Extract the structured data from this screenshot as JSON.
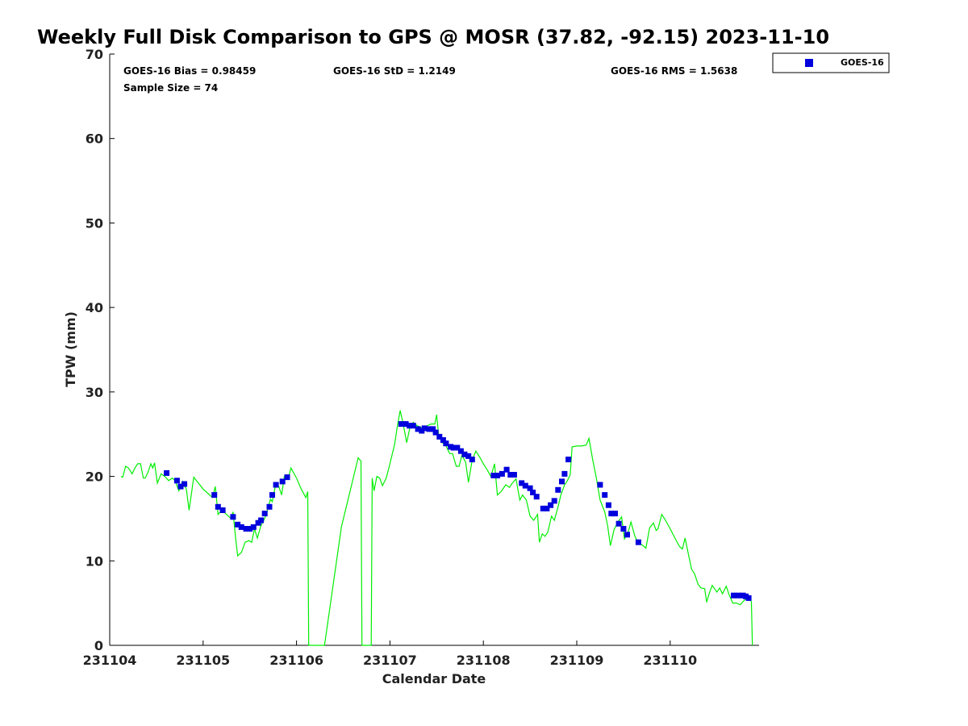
{
  "chart_data": {
    "type": "scatter",
    "title": "Weekly Full Disk Comparison to GPS @ MOSR (37.82, -92.15) 2023-11-10",
    "xlabel": "Calendar Date",
    "ylabel": "TPW (mm)",
    "xlim": [
      231104,
      231111
    ],
    "ylim": [
      0,
      70
    ],
    "x_tick_labels": [
      "231104",
      "231105",
      "231106",
      "231107",
      "231108",
      "231109",
      "231110"
    ],
    "y_tick_labels": [
      "0",
      "10",
      "20",
      "30",
      "40",
      "50",
      "60",
      "70"
    ],
    "grid": false,
    "legend_position": "top-right",
    "stats": {
      "bias": "GOES-16 Bias = 0.98459",
      "std": "GOES-16 StD = 1.2149",
      "rms": "GOES-16 RMS = 1.5638",
      "sample": "Sample Size = 74"
    },
    "series": [
      {
        "name": "GOES-16",
        "kind": "scatter",
        "color": "#0000dd",
        "points": [
          [
            231104.61,
            20.4
          ],
          [
            231104.72,
            19.5
          ],
          [
            231104.76,
            18.8
          ],
          [
            231104.8,
            19.1
          ],
          [
            231105.12,
            17.8
          ],
          [
            231105.16,
            16.4
          ],
          [
            231105.21,
            16.0
          ],
          [
            231105.32,
            15.2
          ],
          [
            231105.37,
            14.3
          ],
          [
            231105.41,
            14.0
          ],
          [
            231105.46,
            13.8
          ],
          [
            231105.5,
            13.8
          ],
          [
            231105.54,
            14.0
          ],
          [
            231105.59,
            14.5
          ],
          [
            231105.62,
            14.8
          ],
          [
            231105.66,
            15.6
          ],
          [
            231105.71,
            16.4
          ],
          [
            231105.74,
            17.8
          ],
          [
            231105.78,
            19.0
          ],
          [
            231105.85,
            19.4
          ],
          [
            231105.9,
            19.9
          ],
          [
            231107.12,
            26.2
          ],
          [
            231107.17,
            26.2
          ],
          [
            231107.21,
            26.0
          ],
          [
            231107.25,
            26.0
          ],
          [
            231107.3,
            25.6
          ],
          [
            231107.34,
            25.4
          ],
          [
            231107.37,
            25.7
          ],
          [
            231107.42,
            25.6
          ],
          [
            231107.46,
            25.6
          ],
          [
            231107.49,
            25.2
          ],
          [
            231107.53,
            24.7
          ],
          [
            231107.57,
            24.3
          ],
          [
            231107.6,
            23.9
          ],
          [
            231107.65,
            23.5
          ],
          [
            231107.68,
            23.4
          ],
          [
            231107.72,
            23.4
          ],
          [
            231107.76,
            23.0
          ],
          [
            231107.8,
            22.6
          ],
          [
            231107.84,
            22.4
          ],
          [
            231107.88,
            22.0
          ],
          [
            231108.11,
            20.1
          ],
          [
            231108.15,
            20.1
          ],
          [
            231108.2,
            20.3
          ],
          [
            231108.25,
            20.8
          ],
          [
            231108.29,
            20.2
          ],
          [
            231108.33,
            20.2
          ],
          [
            231108.41,
            19.2
          ],
          [
            231108.45,
            18.9
          ],
          [
            231108.5,
            18.6
          ],
          [
            231108.53,
            18.1
          ],
          [
            231108.57,
            17.6
          ],
          [
            231108.64,
            16.2
          ],
          [
            231108.68,
            16.2
          ],
          [
            231108.72,
            16.6
          ],
          [
            231108.76,
            17.1
          ],
          [
            231108.8,
            18.4
          ],
          [
            231108.84,
            19.4
          ],
          [
            231108.87,
            20.3
          ],
          [
            231108.91,
            22.0
          ],
          [
            231109.25,
            19.0
          ],
          [
            231109.3,
            17.8
          ],
          [
            231109.34,
            16.6
          ],
          [
            231109.37,
            15.6
          ],
          [
            231109.41,
            15.6
          ],
          [
            231109.45,
            14.4
          ],
          [
            231109.5,
            13.8
          ],
          [
            231109.54,
            13.1
          ],
          [
            231109.66,
            12.2
          ],
          [
            231110.68,
            5.9
          ],
          [
            231110.73,
            5.9
          ],
          [
            231110.78,
            5.9
          ],
          [
            231110.81,
            5.8
          ],
          [
            231110.84,
            5.6
          ]
        ]
      },
      {
        "kind": "line",
        "color": "#00ee00",
        "points": [
          [
            231104.12,
            20.0
          ],
          [
            231104.14,
            19.9
          ],
          [
            231104.17,
            21.2
          ],
          [
            231104.2,
            21.0
          ],
          [
            231104.24,
            20.3
          ],
          [
            231104.27,
            21.0
          ],
          [
            231104.3,
            21.5
          ],
          [
            231104.33,
            21.5
          ],
          [
            231104.36,
            19.8
          ],
          [
            231104.38,
            19.8
          ],
          [
            231104.41,
            20.5
          ],
          [
            231104.44,
            21.5
          ],
          [
            231104.46,
            21.0
          ],
          [
            231104.48,
            21.6
          ],
          [
            231104.51,
            19.2
          ],
          [
            231104.55,
            20.3
          ],
          [
            231104.59,
            20.0
          ],
          [
            231104.63,
            19.5
          ],
          [
            231104.67,
            19.8
          ],
          [
            231104.7,
            19.5
          ],
          [
            231104.74,
            18.3
          ],
          [
            231104.78,
            19.4
          ],
          [
            231104.82,
            18.5
          ],
          [
            231104.85,
            16.0
          ],
          [
            231104.9,
            19.9
          ],
          [
            231104.95,
            19.2
          ],
          [
            231105.0,
            18.5
          ],
          [
            231105.05,
            18.0
          ],
          [
            231105.1,
            17.5
          ],
          [
            231105.13,
            18.8
          ],
          [
            231105.16,
            15.5
          ],
          [
            231105.2,
            16.0
          ],
          [
            231105.25,
            15.5
          ],
          [
            231105.3,
            15.0
          ],
          [
            231105.32,
            15.8
          ],
          [
            231105.35,
            12.5
          ],
          [
            231105.37,
            10.6
          ],
          [
            231105.41,
            11.0
          ],
          [
            231105.45,
            12.2
          ],
          [
            231105.49,
            12.4
          ],
          [
            231105.52,
            12.2
          ],
          [
            231105.55,
            13.8
          ],
          [
            231105.58,
            12.7
          ],
          [
            231105.62,
            14.2
          ],
          [
            231105.65,
            14.8
          ],
          [
            231105.68,
            15.6
          ],
          [
            231105.72,
            17.3
          ],
          [
            231105.74,
            17.0
          ],
          [
            231105.78,
            19.2
          ],
          [
            231105.81,
            18.8
          ],
          [
            231105.84,
            17.8
          ],
          [
            231105.87,
            20.0
          ],
          [
            231105.91,
            19.7
          ],
          [
            231105.94,
            21.0
          ],
          [
            231106.0,
            19.8
          ],
          [
            231106.05,
            18.5
          ],
          [
            231106.1,
            17.5
          ],
          [
            231106.12,
            18.2
          ],
          [
            231106.13,
            0.0
          ],
          [
            231106.3,
            0.0
          ],
          [
            231106.48,
            14.0
          ],
          [
            231106.66,
            22.2
          ],
          [
            231106.69,
            21.8
          ],
          [
            231106.7,
            0.0
          ],
          [
            231106.8,
            0.0
          ],
          [
            231106.81,
            19.8
          ],
          [
            231106.83,
            18.3
          ],
          [
            231106.86,
            20.0
          ],
          [
            231106.89,
            19.8
          ],
          [
            231106.92,
            18.9
          ],
          [
            231106.96,
            19.8
          ],
          [
            231107.0,
            21.5
          ],
          [
            231107.05,
            23.8
          ],
          [
            231107.08,
            26.0
          ],
          [
            231107.11,
            27.8
          ],
          [
            231107.14,
            26.3
          ],
          [
            231107.18,
            24.0
          ],
          [
            231107.21,
            25.6
          ],
          [
            231107.25,
            26.4
          ],
          [
            231107.29,
            26.0
          ],
          [
            231107.33,
            25.8
          ],
          [
            231107.36,
            25.5
          ],
          [
            231107.4,
            26.0
          ],
          [
            231107.44,
            26.2
          ],
          [
            231107.48,
            26.2
          ],
          [
            231107.5,
            27.3
          ],
          [
            231107.52,
            25.0
          ],
          [
            231107.56,
            24.0
          ],
          [
            231107.6,
            23.6
          ],
          [
            231107.64,
            22.7
          ],
          [
            231107.67,
            22.7
          ],
          [
            231107.71,
            21.2
          ],
          [
            231107.74,
            21.2
          ],
          [
            231107.77,
            22.5
          ],
          [
            231107.81,
            21.7
          ],
          [
            231107.84,
            19.3
          ],
          [
            231107.88,
            21.9
          ],
          [
            231107.92,
            23.0
          ],
          [
            231107.96,
            22.3
          ],
          [
            231108.0,
            21.5
          ],
          [
            231108.04,
            20.8
          ],
          [
            231108.08,
            20.0
          ],
          [
            231108.12,
            21.5
          ],
          [
            231108.15,
            17.8
          ],
          [
            231108.19,
            18.2
          ],
          [
            231108.24,
            19.0
          ],
          [
            231108.28,
            18.7
          ],
          [
            231108.31,
            19.2
          ],
          [
            231108.35,
            19.7
          ],
          [
            231108.39,
            17.2
          ],
          [
            231108.42,
            17.8
          ],
          [
            231108.46,
            17.2
          ],
          [
            231108.5,
            15.3
          ],
          [
            231108.54,
            14.8
          ],
          [
            231108.58,
            15.5
          ],
          [
            231108.6,
            12.2
          ],
          [
            231108.63,
            13.2
          ],
          [
            231108.66,
            12.9
          ],
          [
            231108.69,
            13.4
          ],
          [
            231108.73,
            15.3
          ],
          [
            231108.76,
            14.8
          ],
          [
            231108.8,
            16.4
          ],
          [
            231108.83,
            17.8
          ],
          [
            231108.87,
            19.0
          ],
          [
            231108.9,
            19.5
          ],
          [
            231108.93,
            20.2
          ],
          [
            231108.95,
            23.5
          ],
          [
            231109.0,
            23.6
          ],
          [
            231109.05,
            23.6
          ],
          [
            231109.1,
            23.7
          ],
          [
            231109.13,
            24.5
          ],
          [
            231109.17,
            22.0
          ],
          [
            231109.21,
            19.8
          ],
          [
            231109.25,
            17.2
          ],
          [
            231109.3,
            15.8
          ],
          [
            231109.33,
            14.2
          ],
          [
            231109.36,
            11.8
          ],
          [
            231109.4,
            13.7
          ],
          [
            231109.44,
            14.6
          ],
          [
            231109.48,
            15.2
          ],
          [
            231109.51,
            12.6
          ],
          [
            231109.55,
            13.4
          ],
          [
            231109.58,
            14.6
          ],
          [
            231109.62,
            13.0
          ],
          [
            231109.66,
            12.0
          ],
          [
            231109.7,
            11.9
          ],
          [
            231109.74,
            11.5
          ],
          [
            231109.78,
            13.9
          ],
          [
            231109.82,
            14.5
          ],
          [
            231109.85,
            13.6
          ],
          [
            231109.87,
            13.8
          ],
          [
            231109.91,
            15.5
          ],
          [
            231109.95,
            14.8
          ],
          [
            231110.0,
            13.8
          ],
          [
            231110.05,
            12.7
          ],
          [
            231110.1,
            11.7
          ],
          [
            231110.13,
            11.4
          ],
          [
            231110.16,
            12.7
          ],
          [
            231110.2,
            10.5
          ],
          [
            231110.23,
            9.0
          ],
          [
            231110.26,
            8.5
          ],
          [
            231110.3,
            7.2
          ],
          [
            231110.33,
            6.8
          ],
          [
            231110.37,
            6.7
          ],
          [
            231110.39,
            5.1
          ],
          [
            231110.42,
            6.2
          ],
          [
            231110.45,
            7.1
          ],
          [
            231110.5,
            6.3
          ],
          [
            231110.53,
            6.8
          ],
          [
            231110.56,
            6.1
          ],
          [
            231110.6,
            7.0
          ],
          [
            231110.63,
            6.0
          ],
          [
            231110.67,
            5.0
          ],
          [
            231110.71,
            5.0
          ],
          [
            231110.75,
            4.8
          ],
          [
            231110.79,
            5.3
          ],
          [
            231110.82,
            5.6
          ],
          [
            231110.85,
            5.8
          ],
          [
            231110.87,
            5.1
          ],
          [
            231110.88,
            0.0
          ]
        ]
      }
    ]
  }
}
